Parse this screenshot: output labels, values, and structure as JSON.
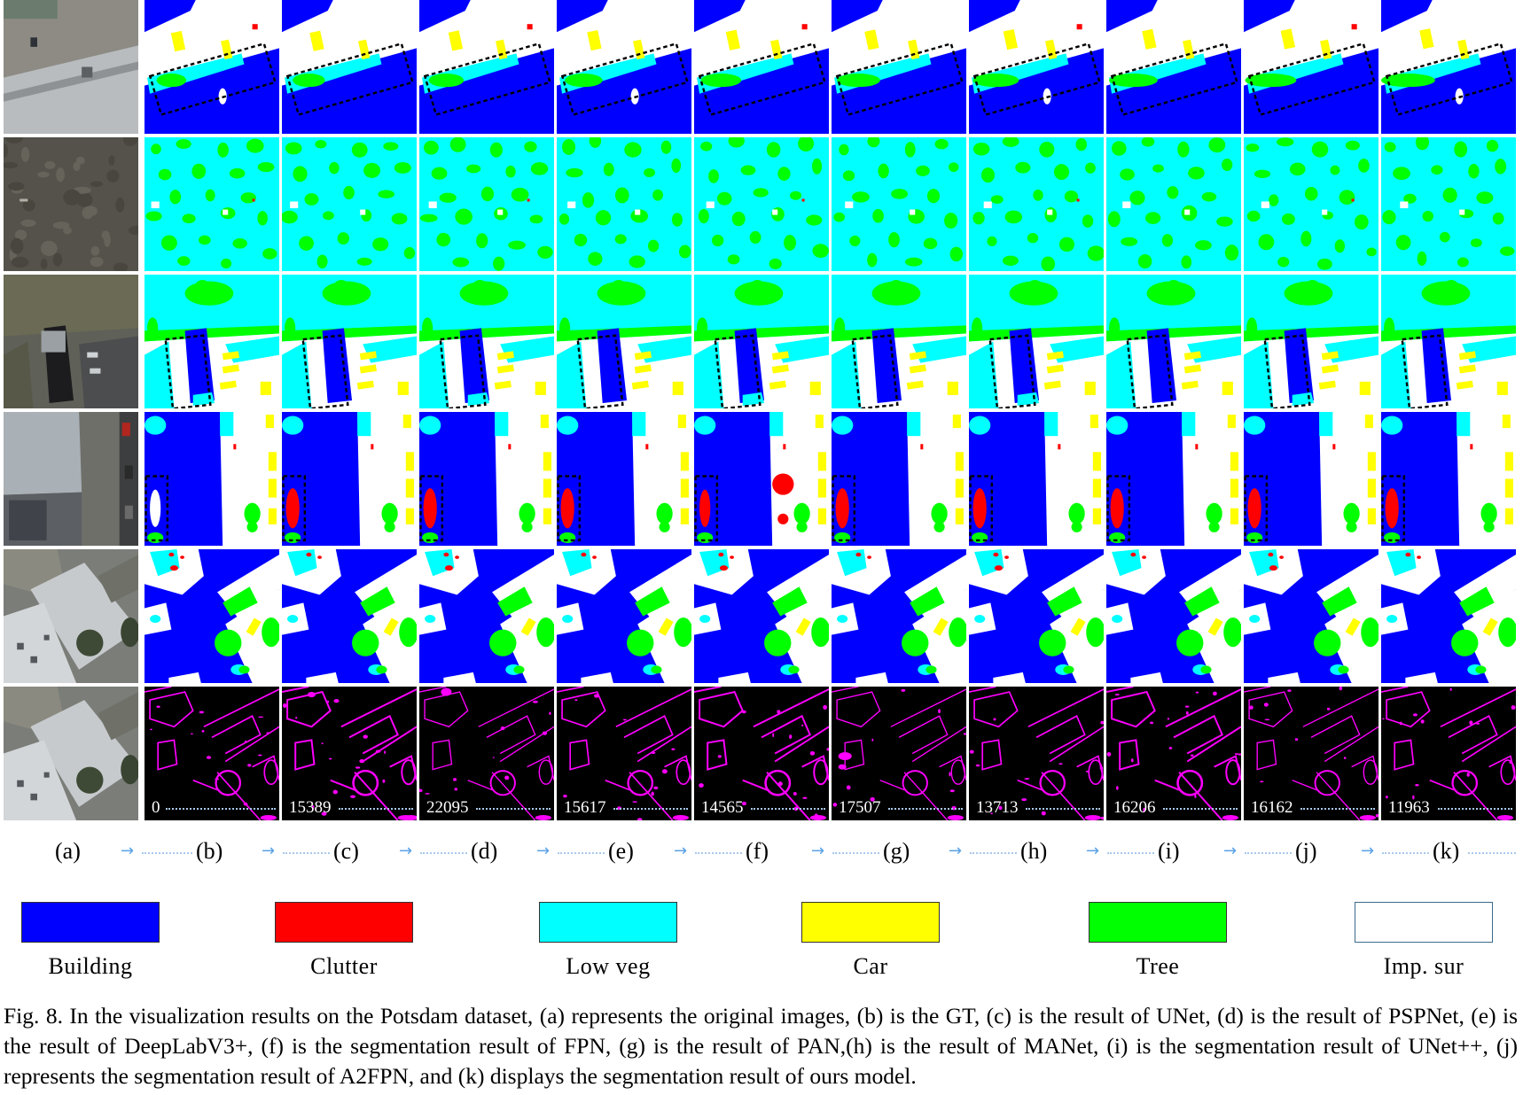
{
  "figure": {
    "columns": [
      {
        "label": "(a)",
        "content": "original images"
      },
      {
        "label": "(b)",
        "content": "GT"
      },
      {
        "label": "(c)",
        "content": "UNet"
      },
      {
        "label": "(d)",
        "content": "PSPNet"
      },
      {
        "label": "(e)",
        "content": "DeepLabV3+"
      },
      {
        "label": "(f)",
        "content": "FPN"
      },
      {
        "label": "(g)",
        "content": "PAN"
      },
      {
        "label": "(h)",
        "content": "MANet"
      },
      {
        "label": "(i)",
        "content": "UNet++"
      },
      {
        "label": "(j)",
        "content": "A2FPN"
      },
      {
        "label": "(k)",
        "content": "ours model"
      }
    ],
    "error_counts": [
      "0",
      "15389",
      "22095",
      "15617",
      "14565",
      "17507",
      "13713",
      "16206",
      "16162",
      "11963"
    ],
    "legend": [
      {
        "label": "Building",
        "color": "#0000ff"
      },
      {
        "label": "Clutter",
        "color": "#ff0000"
      },
      {
        "label": "Low veg",
        "color": "#00ffff"
      },
      {
        "label": "Car",
        "color": "#ffff00"
      },
      {
        "label": "Tree",
        "color": "#00ff00"
      },
      {
        "label": "Imp. sur",
        "color": "#ffffff"
      }
    ],
    "error_color": "#ff00ff",
    "caption": "Fig. 8. In the visualization results on the Potsdam dataset, (a) represents the original images, (b) is the GT, (c) is the result of UNet, (d) is the result of PSPNet, (e) is the result of DeepLabV3+, (f) is the segmentation result of FPN, (g) is the result of PAN,(h) is the result of MANet, (i) is the segmentation result of UNet++, (j) represents the segmentation result of A2FPN, and (k) displays the segmentation result of ours model."
  }
}
